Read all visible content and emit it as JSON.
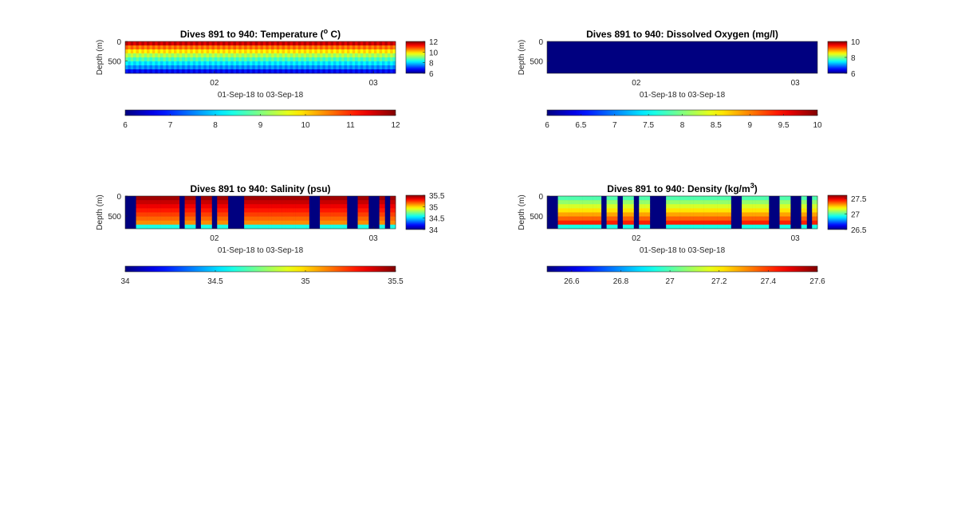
{
  "figure": {
    "background": "#ffffff",
    "colormap": "jet"
  },
  "chart_data": [
    {
      "type": "heatmap",
      "title": "Dives 891 to 940: Temperature (",
      "title_sup": "o",
      "title_tail": " C)",
      "xlabel": "01-Sep-18 to 03-Sep-18",
      "ylabel": "Depth (m)",
      "x_ticks": [
        "02",
        "03"
      ],
      "y_ticks": [
        "0",
        "500"
      ],
      "clim": [
        6,
        12
      ],
      "side_colorbar_ticks": [
        "12",
        "10",
        "8",
        "6"
      ],
      "bottom_colorbar_ticks": [
        "6",
        "7",
        "8",
        "9",
        "10",
        "11",
        "12"
      ],
      "pattern": "continuous",
      "surface_value": 11.7,
      "deep_value": 7.2,
      "profiles": 50
    },
    {
      "type": "heatmap",
      "title": "Dives 891 to 940: Dissolved Oxygen (mg/l)",
      "xlabel": "01-Sep-18 to 03-Sep-18",
      "ylabel": "Depth (m)",
      "x_ticks": [
        "02",
        "03"
      ],
      "y_ticks": [
        "0",
        "500"
      ],
      "clim": [
        6,
        10
      ],
      "side_colorbar_ticks": [
        "10",
        "8",
        "6"
      ],
      "bottom_colorbar_ticks": [
        "6",
        "6.5",
        "7",
        "7.5",
        "8",
        "8.5",
        "9",
        "9.5",
        "10"
      ],
      "pattern": "uniform",
      "fill_value": 6,
      "profiles": 50
    },
    {
      "type": "heatmap",
      "title": "Dives 891 to 940: Salinity (psu)",
      "xlabel": "01-Sep-18 to 03-Sep-18",
      "ylabel": "Depth (m)",
      "x_ticks": [
        "02",
        "03"
      ],
      "y_ticks": [
        "0",
        "500"
      ],
      "clim": [
        34,
        35.5
      ],
      "side_colorbar_ticks": [
        "35.5",
        "35",
        "34.5",
        "34"
      ],
      "bottom_colorbar_ticks": [
        "34",
        "34.5",
        "35",
        "35.5"
      ],
      "pattern": "stripes",
      "surface_value": 35.45,
      "deep_value": 35.05,
      "profiles": 50,
      "gap_profiles": [
        0,
        1,
        10,
        13,
        16,
        19,
        20,
        21,
        34,
        35,
        41,
        42,
        45,
        46,
        48
      ]
    },
    {
      "type": "heatmap",
      "title": "Dives 891 to 940: Density (kg/m",
      "title_sup": "3",
      "title_tail": ")",
      "xlabel": "01-Sep-18 to 03-Sep-18",
      "ylabel": "Depth (m)",
      "x_ticks": [
        "02",
        "03"
      ],
      "y_ticks": [
        "0",
        "500"
      ],
      "clim": [
        26.5,
        27.6
      ],
      "side_colorbar_ticks": [
        "27.5",
        "27",
        "26.5"
      ],
      "bottom_colorbar_ticks": [
        "26.6",
        "26.8",
        "27",
        "27.2",
        "27.4",
        "27.6"
      ],
      "pattern": "stripes",
      "surface_value": 27.0,
      "deep_value": 27.5,
      "profiles": 50,
      "gap_profiles": [
        0,
        1,
        10,
        13,
        16,
        19,
        20,
        21,
        34,
        35,
        41,
        42,
        45,
        46,
        48
      ]
    }
  ]
}
